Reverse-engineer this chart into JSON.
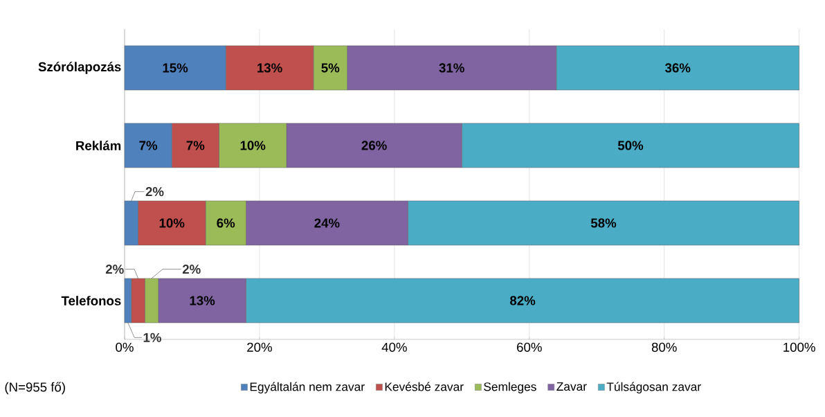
{
  "chart_data": {
    "type": "bar",
    "orientation": "horizontal",
    "stacked": true,
    "categories": [
      "Szórólapozás",
      "Reklám",
      null,
      "Telefonos"
    ],
    "series": [
      {
        "name": "Egyáltalán nem zavar",
        "color": "#4f81bd",
        "values": [
          15,
          7,
          2,
          1
        ],
        "value_labels": [
          "15%",
          "7%",
          "2%",
          "1%"
        ]
      },
      {
        "name": "Kevésbé zavar",
        "color": "#c0504d",
        "values": [
          13,
          7,
          10,
          2
        ],
        "value_labels": [
          "13%",
          "7%",
          "10%",
          "2%"
        ]
      },
      {
        "name": "Semleges",
        "color": "#9bbb59",
        "values": [
          5,
          10,
          6,
          2
        ],
        "value_labels": [
          "5%",
          "10%",
          "6%",
          "2%"
        ]
      },
      {
        "name": "Zavar",
        "color": "#8064a2",
        "values": [
          31,
          26,
          24,
          13
        ],
        "value_labels": [
          "31%",
          "26%",
          "24%",
          "13%"
        ]
      },
      {
        "name": "Túlságosan zavar",
        "color": "#4bacc6",
        "values": [
          36,
          50,
          58,
          82
        ],
        "value_labels": [
          "36%",
          "50%",
          "58%",
          "82%"
        ]
      }
    ],
    "xlim": [
      0,
      100
    ],
    "xticks": [
      {
        "value": 0,
        "label": "0%"
      },
      {
        "value": 20,
        "label": "20%"
      },
      {
        "value": 40,
        "label": "40%"
      },
      {
        "value": 60,
        "label": "60%"
      },
      {
        "value": 80,
        "label": "80%"
      },
      {
        "value": 100,
        "label": "100%"
      }
    ],
    "grid": "x",
    "legend": "bottom",
    "annotations": [
      "(N=955 fő)"
    ]
  }
}
